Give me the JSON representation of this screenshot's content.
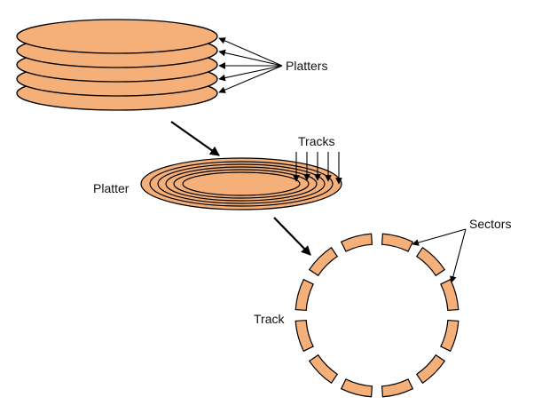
{
  "diagram": {
    "title_labels": {
      "platters": "Platters",
      "tracks": "Tracks",
      "platter": "Platter",
      "sectors": "Sectors",
      "track": "Track"
    },
    "colors": {
      "disk_fill": "#f5b07a",
      "outline": "#000000",
      "background": "#ffffff"
    },
    "platter_count": 5,
    "track_ring_count": 6,
    "sector_count": 12
  }
}
